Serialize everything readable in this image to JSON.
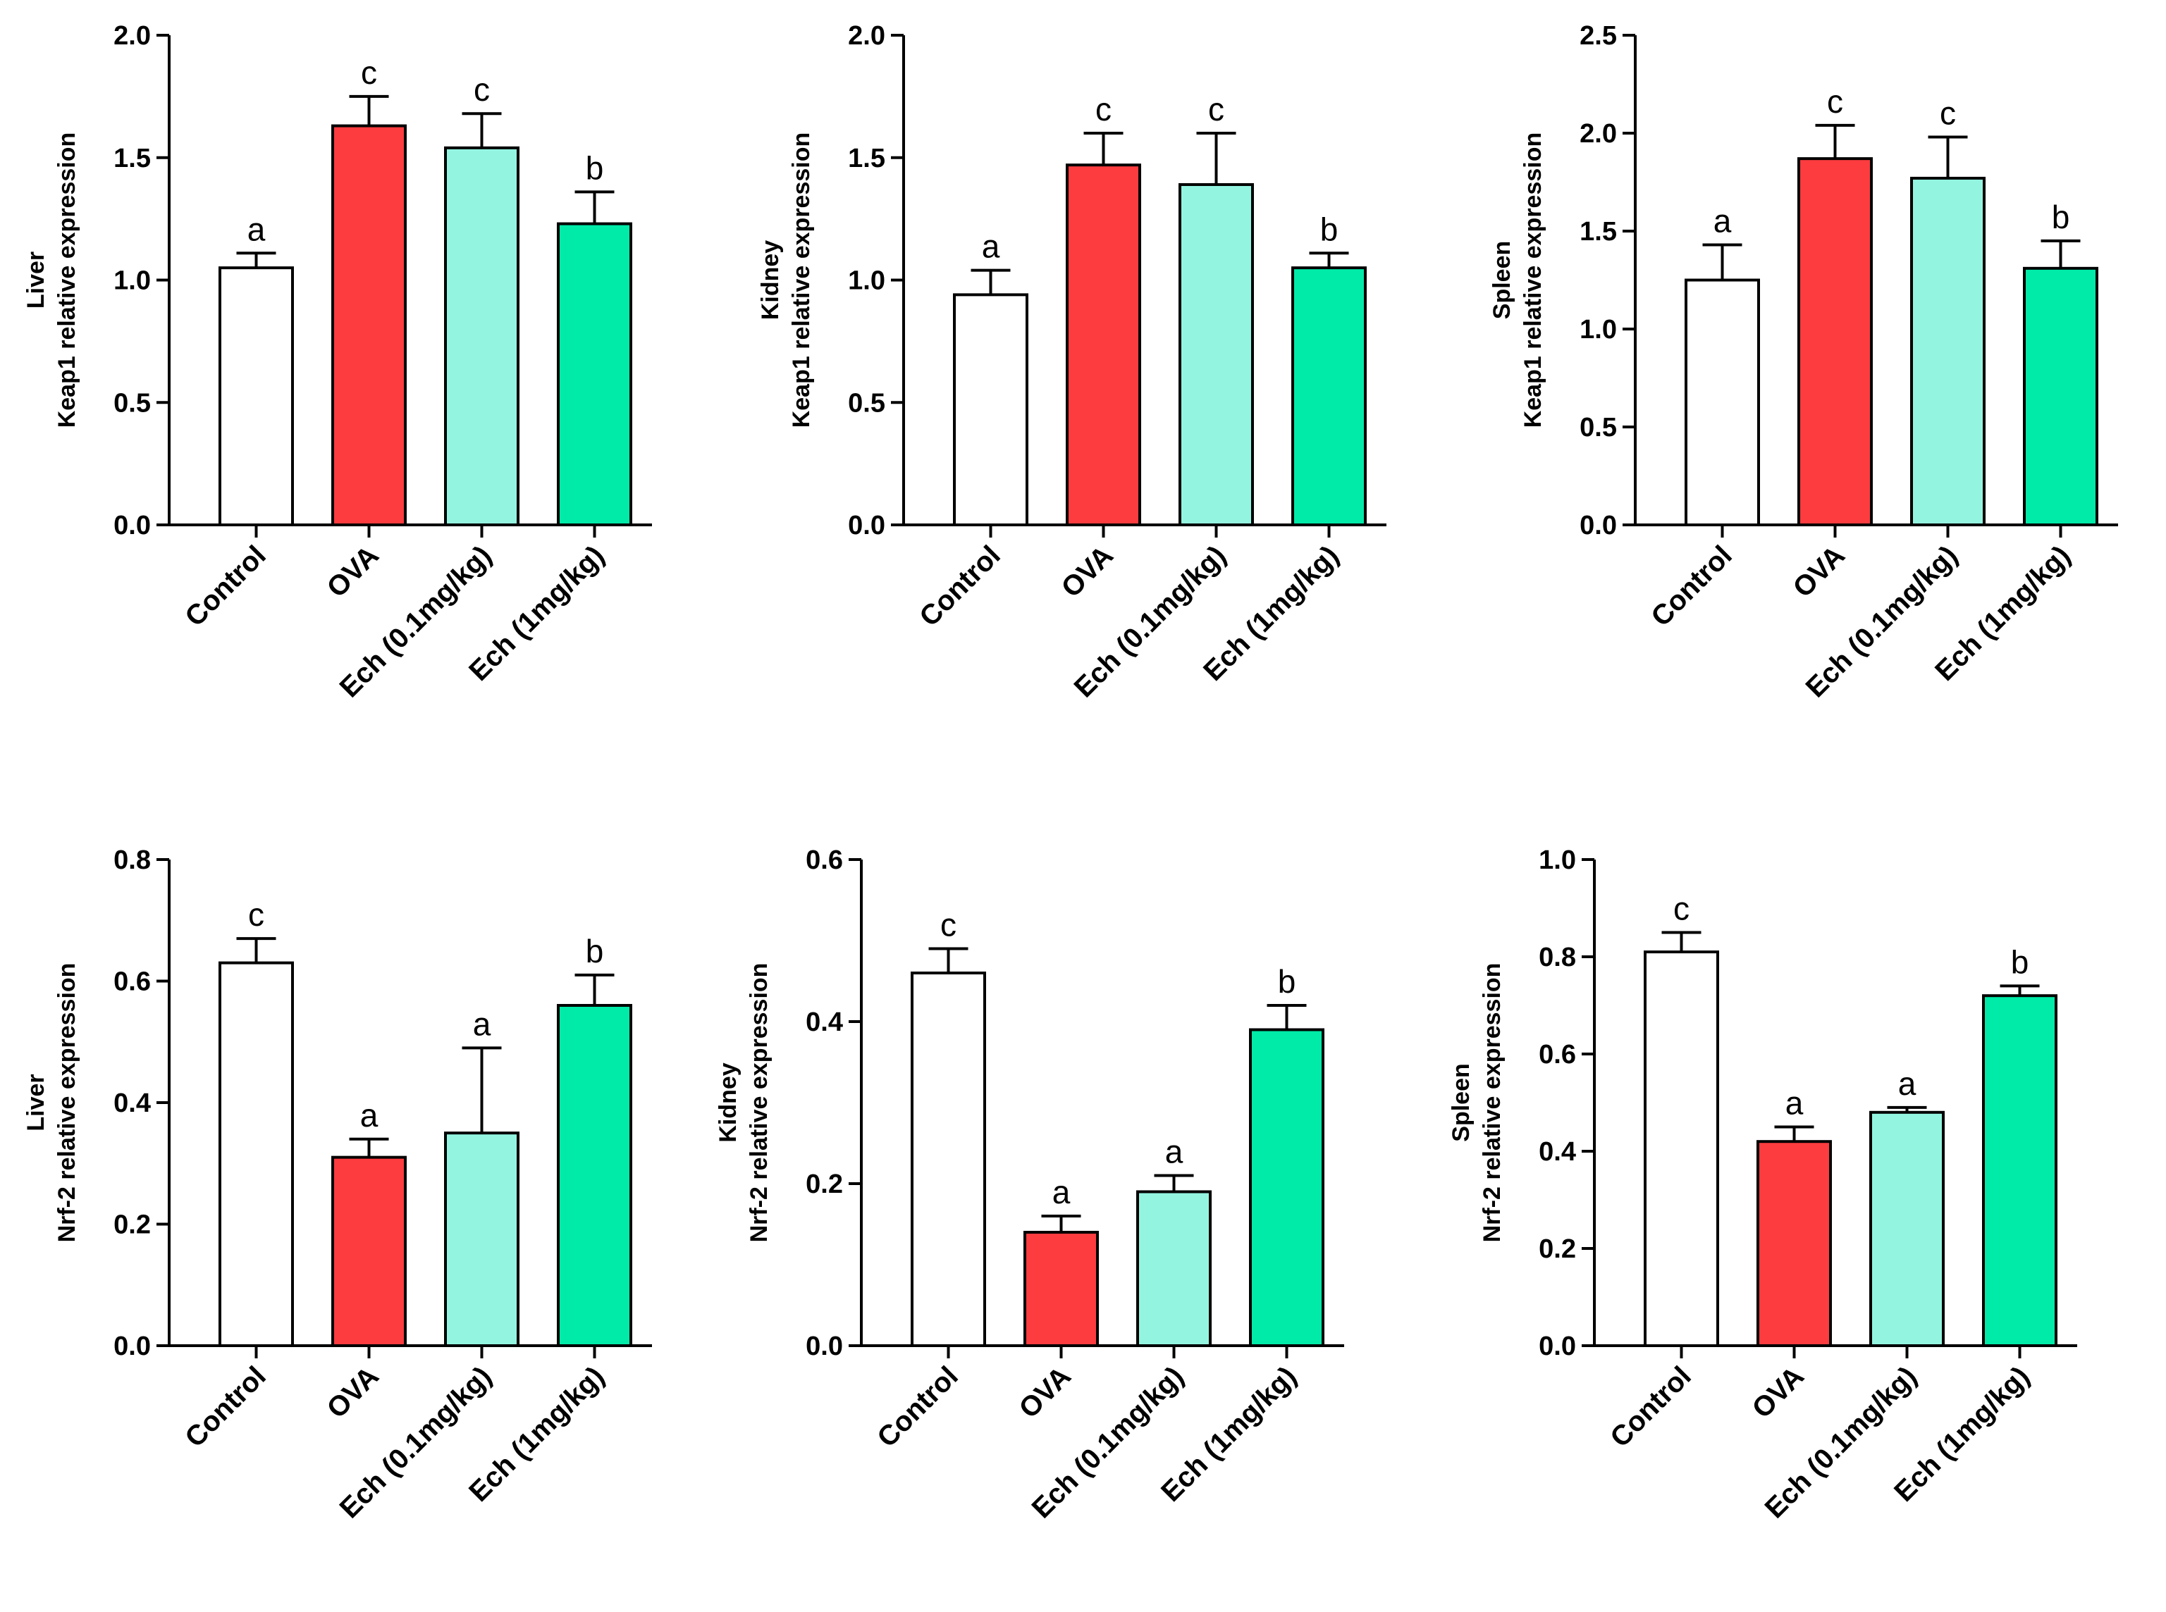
{
  "chart_data": [
    {
      "type": "bar",
      "panel": "Liver Keap1",
      "ylabel_line1": "Liver",
      "ylabel_line2": "Keap1 relative expression",
      "categories": [
        "Control",
        "OVA",
        "Ech (0.1mg/kg)",
        "Ech (1mg/kg)"
      ],
      "values": [
        1.05,
        1.63,
        1.54,
        1.23
      ],
      "errors": [
        0.06,
        0.12,
        0.14,
        0.13
      ],
      "significance": [
        "a",
        "c",
        "c",
        "b"
      ],
      "ylim": [
        0,
        2.0
      ],
      "yticks": [
        "0.0",
        "0.5",
        "1.0",
        "1.5",
        "2.0"
      ],
      "colors": [
        "#ffffff",
        "#fc3c3f",
        "#93f5e0",
        "#00eba8"
      ]
    },
    {
      "type": "bar",
      "panel": "Kidney Keap1",
      "ylabel_line1": "Kidney",
      "ylabel_line2": "Keap1 relative expression",
      "categories": [
        "Control",
        "OVA",
        "Ech (0.1mg/kg)",
        "Ech (1mg/kg)"
      ],
      "values": [
        0.94,
        1.47,
        1.39,
        1.05
      ],
      "errors": [
        0.1,
        0.13,
        0.21,
        0.06
      ],
      "significance": [
        "a",
        "c",
        "c",
        "b"
      ],
      "ylim": [
        0,
        2.0
      ],
      "yticks": [
        "0.0",
        "0.5",
        "1.0",
        "1.5",
        "2.0"
      ],
      "colors": [
        "#ffffff",
        "#fc3c3f",
        "#93f5e0",
        "#00eba8"
      ]
    },
    {
      "type": "bar",
      "panel": "Spleen Keap1",
      "ylabel_line1": "Spleen",
      "ylabel_line2": "Keap1 relative expression",
      "categories": [
        "Control",
        "OVA",
        "Ech (0.1mg/kg)",
        "Ech (1mg/kg)"
      ],
      "values": [
        1.25,
        1.87,
        1.77,
        1.31
      ],
      "errors": [
        0.18,
        0.17,
        0.21,
        0.14
      ],
      "significance": [
        "a",
        "c",
        "c",
        "b"
      ],
      "ylim": [
        0,
        2.5
      ],
      "yticks": [
        "0.0",
        "0.5",
        "1.0",
        "1.5",
        "2.0",
        "2.5"
      ],
      "colors": [
        "#ffffff",
        "#fc3c3f",
        "#93f5e0",
        "#00eba8"
      ]
    },
    {
      "type": "bar",
      "panel": "Liver Nrf-2",
      "ylabel_line1": "Liver",
      "ylabel_line2": "Nrf-2 relative expression",
      "categories": [
        "Control",
        "OVA",
        "Ech (0.1mg/kg)",
        "Ech (1mg/kg)"
      ],
      "values": [
        0.63,
        0.31,
        0.35,
        0.56
      ],
      "errors": [
        0.04,
        0.03,
        0.14,
        0.05
      ],
      "significance": [
        "c",
        "a",
        "a",
        "b"
      ],
      "ylim": [
        0,
        0.8
      ],
      "yticks": [
        "0.0",
        "0.2",
        "0.4",
        "0.6",
        "0.8"
      ],
      "colors": [
        "#ffffff",
        "#fc3c3f",
        "#93f5e0",
        "#00eba8"
      ]
    },
    {
      "type": "bar",
      "panel": "Kidney Nrf-2",
      "ylabel_line1": "Kidney",
      "ylabel_line2": "Nrf-2 relative expression",
      "categories": [
        "Control",
        "OVA",
        "Ech (0.1mg/kg)",
        "Ech (1mg/kg)"
      ],
      "values": [
        0.46,
        0.14,
        0.19,
        0.39
      ],
      "errors": [
        0.03,
        0.02,
        0.02,
        0.03
      ],
      "significance": [
        "c",
        "a",
        "a",
        "b"
      ],
      "ylim": [
        0,
        0.6
      ],
      "yticks": [
        "0.0",
        "0.2",
        "0.4",
        "0.6"
      ],
      "colors": [
        "#ffffff",
        "#fc3c3f",
        "#93f5e0",
        "#00eba8"
      ]
    },
    {
      "type": "bar",
      "panel": "Spleen Nrf-2",
      "ylabel_line1": "Spleen",
      "ylabel_line2": "Nrf-2 relative expression",
      "categories": [
        "Control",
        "OVA",
        "Ech (0.1mg/kg)",
        "Ech (1mg/kg)"
      ],
      "values": [
        0.81,
        0.42,
        0.48,
        0.72
      ],
      "errors": [
        0.04,
        0.03,
        0.01,
        0.02
      ],
      "significance": [
        "c",
        "a",
        "a",
        "b"
      ],
      "ylim": [
        0,
        1.0
      ],
      "yticks": [
        "0.0",
        "0.2",
        "0.4",
        "0.6",
        "0.8",
        "1.0"
      ],
      "colors": [
        "#ffffff",
        "#fc3c3f",
        "#93f5e0",
        "#00eba8"
      ]
    }
  ]
}
